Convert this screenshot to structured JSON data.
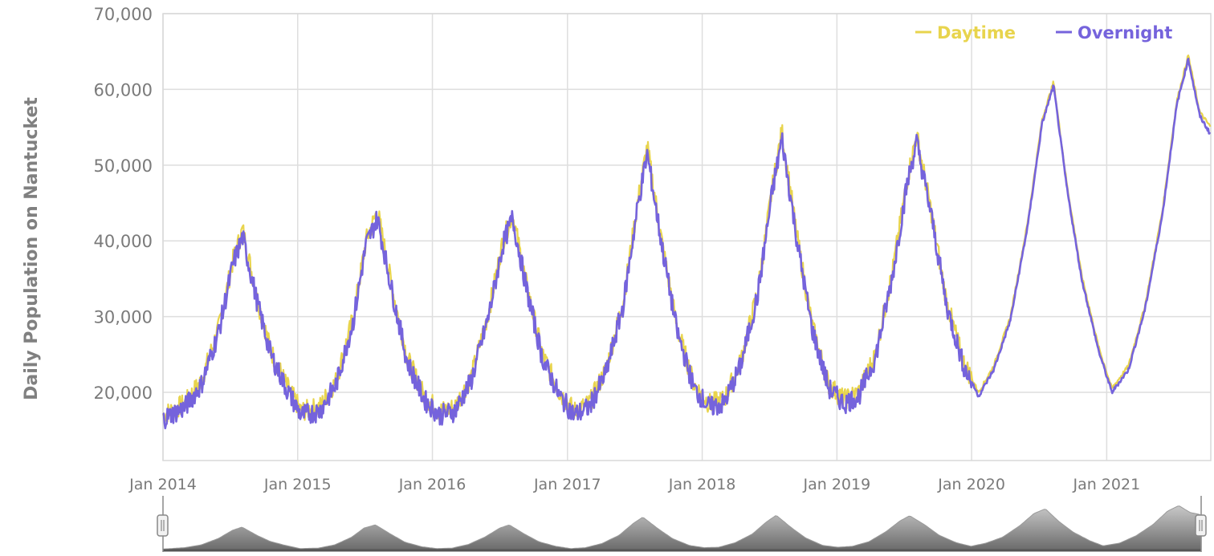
{
  "chart_data": {
    "type": "line",
    "ylabel": "Daily Population on Nantucket",
    "xlabel": "",
    "xlim": [
      "2014-01-01",
      "2021-10-10"
    ],
    "ylim": [
      11000,
      70000
    ],
    "y_ticks": [
      20000,
      30000,
      40000,
      50000,
      60000,
      70000
    ],
    "y_tick_labels": [
      "20,000",
      "30,000",
      "40,000",
      "50,000",
      "60,000",
      "70,000"
    ],
    "x_ticks": [
      "2014-01-01",
      "2015-01-01",
      "2016-01-01",
      "2017-01-01",
      "2018-01-01",
      "2019-01-01",
      "2020-01-01",
      "2021-01-01"
    ],
    "x_tick_labels": [
      "Jan 2014",
      "Jan 2015",
      "Jan 2016",
      "Jan 2017",
      "Jan 2018",
      "Jan 2019",
      "Jan 2020",
      "Jan 2021"
    ],
    "grid": true,
    "legend_position": "top-right",
    "series": [
      {
        "name": "Daytime",
        "color": "#e8d44d",
        "x": [
          "2014-01-01",
          "2014-03-01",
          "2014-04-15",
          "2014-06-01",
          "2014-07-10",
          "2014-08-05",
          "2014-09-15",
          "2014-10-20",
          "2014-12-01",
          "2015-01-10",
          "2015-03-01",
          "2015-04-15",
          "2015-06-01",
          "2015-07-05",
          "2015-08-05",
          "2015-09-15",
          "2015-10-25",
          "2015-12-10",
          "2016-01-20",
          "2016-03-01",
          "2016-04-15",
          "2016-06-01",
          "2016-07-10",
          "2016-08-05",
          "2016-09-15",
          "2016-10-25",
          "2016-12-10",
          "2017-01-20",
          "2017-03-01",
          "2017-04-15",
          "2017-06-01",
          "2017-07-10",
          "2017-08-05",
          "2017-09-15",
          "2017-10-25",
          "2017-12-10",
          "2018-01-20",
          "2018-03-01",
          "2018-04-15",
          "2018-06-01",
          "2018-07-10",
          "2018-08-05",
          "2018-09-15",
          "2018-10-25",
          "2018-12-10",
          "2019-01-20",
          "2019-03-01",
          "2019-04-15",
          "2019-06-01",
          "2019-07-10",
          "2019-08-05",
          "2019-09-15",
          "2019-10-25",
          "2019-12-10",
          "2020-01-20",
          "2020-03-01",
          "2020-04-15",
          "2020-06-01",
          "2020-07-10",
          "2020-08-10",
          "2020-09-15",
          "2020-10-25",
          "2020-12-10",
          "2021-01-15",
          "2021-03-01",
          "2021-04-15",
          "2021-06-01",
          "2021-07-10",
          "2021-08-10",
          "2021-09-10",
          "2021-10-10"
        ],
        "y": [
          17000,
          18500,
          21500,
          28500,
          37500,
          41500,
          32000,
          25500,
          21000,
          17500,
          18000,
          21500,
          30000,
          40000,
          44000,
          33500,
          24500,
          19500,
          17500,
          18000,
          22000,
          30500,
          40000,
          43500,
          33500,
          25000,
          20000,
          17500,
          18500,
          23000,
          32000,
          45000,
          52500,
          39500,
          28500,
          21000,
          18500,
          19000,
          24000,
          33500,
          47000,
          54500,
          40500,
          29000,
          21000,
          19000,
          20000,
          25000,
          36000,
          48000,
          54000,
          43500,
          32000,
          24000,
          20000,
          23500,
          30000,
          42500,
          56000,
          61000,
          47500,
          35500,
          26000,
          20500,
          23500,
          31500,
          44000,
          58500,
          64500,
          57000,
          55000
        ]
      },
      {
        "name": "Overnight",
        "color": "#7563dc",
        "x": [
          "2014-01-01",
          "2014-03-01",
          "2014-04-15",
          "2014-06-01",
          "2014-07-10",
          "2014-08-05",
          "2014-09-15",
          "2014-10-20",
          "2014-12-01",
          "2015-01-10",
          "2015-03-01",
          "2015-04-15",
          "2015-06-01",
          "2015-07-05",
          "2015-08-05",
          "2015-09-15",
          "2015-10-25",
          "2015-12-10",
          "2016-01-20",
          "2016-03-01",
          "2016-04-15",
          "2016-06-01",
          "2016-07-10",
          "2016-08-05",
          "2016-09-15",
          "2016-10-25",
          "2016-12-10",
          "2017-01-20",
          "2017-03-01",
          "2017-04-15",
          "2017-06-01",
          "2017-07-10",
          "2017-08-05",
          "2017-09-15",
          "2017-10-25",
          "2017-12-10",
          "2018-01-20",
          "2018-03-01",
          "2018-04-15",
          "2018-06-01",
          "2018-07-10",
          "2018-08-05",
          "2018-09-15",
          "2018-10-25",
          "2018-12-10",
          "2019-01-20",
          "2019-03-01",
          "2019-04-15",
          "2019-06-01",
          "2019-07-10",
          "2019-08-05",
          "2019-09-15",
          "2019-10-25",
          "2019-12-10",
          "2020-01-20",
          "2020-03-01",
          "2020-04-15",
          "2020-06-01",
          "2020-07-10",
          "2020-08-10",
          "2020-09-15",
          "2020-10-25",
          "2020-12-10",
          "2021-01-15",
          "2021-03-01",
          "2021-04-15",
          "2021-06-01",
          "2021-07-10",
          "2021-08-10",
          "2021-09-10",
          "2021-10-10"
        ],
        "y": [
          16500,
          18000,
          21000,
          28000,
          37000,
          40500,
          31500,
          25000,
          20500,
          17000,
          17500,
          21000,
          29500,
          39500,
          43000,
          33000,
          24000,
          19000,
          17000,
          17500,
          21500,
          30000,
          39500,
          43000,
          33000,
          24500,
          19500,
          17000,
          18000,
          22500,
          31500,
          44500,
          51500,
          39000,
          28000,
          20500,
          18000,
          18500,
          23500,
          33000,
          46500,
          53500,
          40000,
          28500,
          20500,
          18500,
          19500,
          24500,
          35500,
          47500,
          53000,
          43000,
          31500,
          23500,
          19500,
          23000,
          29500,
          42000,
          55500,
          60500,
          47000,
          35000,
          25500,
          20000,
          23000,
          31000,
          43500,
          58000,
          64000,
          56500,
          54000
        ]
      }
    ]
  }
}
